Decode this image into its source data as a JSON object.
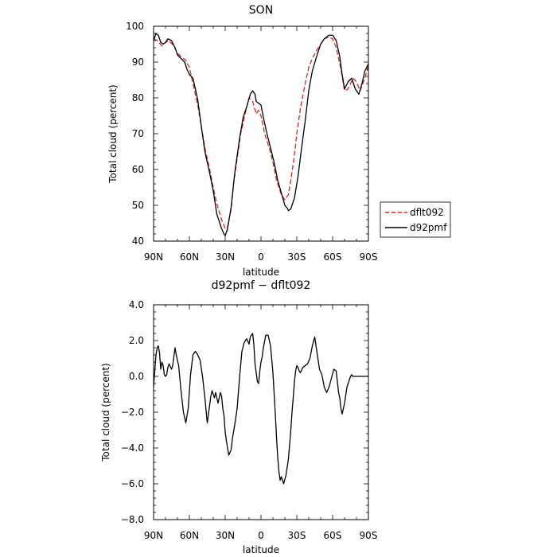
{
  "chart_data": [
    {
      "type": "line",
      "title": "SON",
      "xlabel": "latitude",
      "ylabel": "Total cloud (percent)",
      "x_range": [
        90,
        -90
      ],
      "ylim": [
        40,
        100
      ],
      "x_ticks": [
        {
          "value": 90,
          "label": "90N"
        },
        {
          "value": 60,
          "label": "60N"
        },
        {
          "value": 30,
          "label": "30N"
        },
        {
          "value": 0,
          "label": "0"
        },
        {
          "value": -30,
          "label": "30S"
        },
        {
          "value": -60,
          "label": "60S"
        },
        {
          "value": -90,
          "label": "90S"
        }
      ],
      "y_ticks": [
        {
          "value": 40,
          "label": "40"
        },
        {
          "value": 50,
          "label": "50"
        },
        {
          "value": 60,
          "label": "60"
        },
        {
          "value": 70,
          "label": "70"
        },
        {
          "value": 80,
          "label": "80"
        },
        {
          "value": 90,
          "label": "90"
        },
        {
          "value": 100,
          "label": "100"
        }
      ],
      "legend_position": "right",
      "series": [
        {
          "name": "dflt092",
          "color": "#e02020",
          "dash": "dashed",
          "x": [
            90,
            87,
            83,
            80,
            77,
            73,
            70,
            67,
            63,
            60,
            57,
            53,
            50,
            47,
            43,
            40,
            37,
            33,
            30,
            28,
            25,
            23,
            20,
            17,
            13,
            10,
            7,
            4,
            2,
            0,
            -2,
            -3,
            -7,
            -10,
            -13,
            -17,
            -20,
            -23,
            -25,
            -28,
            -30,
            -33,
            -37,
            -40,
            -43,
            -47,
            -50,
            -53,
            -57,
            -60,
            -63,
            -67,
            -70,
            -73,
            -77,
            -80,
            -83,
            -87,
            -90
          ],
          "y": [
            96.5,
            96,
            94.5,
            95.5,
            96,
            94.5,
            92.5,
            91.5,
            90.5,
            88.5,
            84,
            78,
            72,
            66,
            60,
            55,
            50.5,
            46,
            43.5,
            44,
            49,
            56,
            63,
            70,
            76,
            80,
            79,
            75.5,
            76.5,
            75,
            72,
            70,
            66,
            62,
            57,
            53,
            51.5,
            53,
            57,
            64,
            70,
            77,
            84,
            88.5,
            91,
            93.5,
            95,
            96.5,
            97,
            96.5,
            94,
            88,
            82,
            82.5,
            85.5,
            84.5,
            82,
            85.5,
            89
          ]
        },
        {
          "name": "d92pmf",
          "color": "#000000",
          "dash": "solid",
          "x": [
            90,
            88,
            86,
            84,
            82,
            80,
            78,
            75,
            72,
            70,
            67,
            64,
            62,
            60,
            57,
            53,
            50,
            47,
            43,
            40,
            37,
            33,
            31,
            30,
            28,
            25,
            22,
            18,
            15,
            12,
            9,
            7,
            5,
            4,
            2,
            0,
            -2,
            -5,
            -8,
            -11,
            -14,
            -17,
            -20,
            -22,
            -23,
            -25,
            -28,
            -31,
            -34,
            -37,
            -40,
            -43,
            -47,
            -50,
            -53,
            -57,
            -60,
            -63,
            -66,
            -68,
            -70,
            -73,
            -76,
            -79,
            -82,
            -85,
            -87,
            -90
          ],
          "y": [
            96,
            98,
            97.5,
            95.5,
            95,
            95.5,
            96.5,
            96,
            94,
            92,
            91,
            90,
            88,
            86.5,
            85.5,
            79.5,
            72,
            65,
            59,
            54,
            47.5,
            43.5,
            42,
            41.5,
            43.5,
            49.5,
            59,
            68.5,
            74.5,
            77.5,
            81,
            82,
            81,
            79,
            78.5,
            78,
            74.5,
            70,
            66,
            62,
            57,
            53.5,
            50,
            49.2,
            48.5,
            49,
            52,
            58,
            66,
            73.5,
            82,
            87.5,
            92,
            95,
            96.5,
            97.5,
            97.5,
            96,
            91.5,
            86.5,
            82.5,
            84.5,
            85.5,
            82.5,
            81,
            84.5,
            87.5,
            89.5
          ]
        }
      ]
    },
    {
      "type": "line",
      "title": "d92pmf − dflt092",
      "xlabel": "latitude",
      "ylabel": "Total cloud (percent)",
      "x_range": [
        90,
        -90
      ],
      "ylim": [
        -8,
        4
      ],
      "x_ticks": [
        {
          "value": 90,
          "label": "90N"
        },
        {
          "value": 60,
          "label": "60N"
        },
        {
          "value": 30,
          "label": "30N"
        },
        {
          "value": 0,
          "label": "0"
        },
        {
          "value": -30,
          "label": "30S"
        },
        {
          "value": -60,
          "label": "60S"
        },
        {
          "value": -90,
          "label": "90S"
        }
      ],
      "y_ticks": [
        {
          "value": -8,
          "label": "−8.0"
        },
        {
          "value": -6,
          "label": "−6.0"
        },
        {
          "value": -4,
          "label": "−4.0"
        },
        {
          "value": -2,
          "label": "−2.0"
        },
        {
          "value": 0,
          "label": "0.0"
        },
        {
          "value": 2,
          "label": "2.0"
        },
        {
          "value": 4,
          "label": "4.0"
        }
      ],
      "series": [
        {
          "color": "#000000",
          "dash": "solid",
          "x": [
            90,
            89,
            88,
            87,
            86,
            85,
            84,
            83,
            82,
            81,
            80,
            79,
            78,
            77,
            75,
            74,
            72,
            71,
            69,
            67,
            65,
            63,
            61,
            59,
            57,
            55,
            53,
            51,
            49,
            47,
            45,
            43,
            42,
            41,
            39,
            38,
            36,
            34,
            33,
            32,
            31,
            30,
            29,
            27,
            25,
            24,
            23,
            22,
            20,
            18,
            16,
            14,
            12,
            10,
            9,
            7,
            6,
            5,
            4,
            3,
            2,
            1,
            0,
            -1,
            -2,
            -4,
            -6,
            -8,
            -10,
            -12,
            -13,
            -14,
            -15,
            -16,
            -17,
            -19,
            -21,
            -23,
            -25,
            -26,
            -27,
            -28,
            -29,
            -30,
            -31,
            -32,
            -33,
            -35,
            -37,
            -39,
            -41,
            -43,
            -45,
            -47,
            -49,
            -51,
            -53,
            -55,
            -57,
            -59,
            -61,
            -63,
            -64,
            -65,
            -66,
            -67,
            -68,
            -70,
            -72,
            -74,
            -75,
            -76,
            -77,
            -78,
            -79,
            -80,
            -81,
            -82,
            -83,
            -84,
            -85,
            -86,
            -87,
            -88,
            -89,
            -90
          ],
          "y": [
            -0.6,
            0.3,
            1.2,
            1.6,
            1.7,
            1.3,
            0.4,
            0.8,
            0.6,
            0.1,
            0,
            0.1,
            0.5,
            0.7,
            0.4,
            0.6,
            1.6,
            1.2,
            0.6,
            -0.8,
            -2,
            -2.6,
            -1.8,
            0.1,
            1.2,
            1.4,
            1.2,
            0.9,
            0,
            -1.2,
            -2.6,
            -1.6,
            -1.1,
            -0.8,
            -1.2,
            -0.9,
            -1.5,
            -0.9,
            -1.1,
            -1.8,
            -2.2,
            -3.1,
            -3.6,
            -4.4,
            -4.1,
            -3.5,
            -3.1,
            -2.7,
            -1.8,
            -0.1,
            1.4,
            1.9,
            2.1,
            1.8,
            2.2,
            2.4,
            1.8,
            0.7,
            0.2,
            -0.3,
            -0.4,
            0.3,
            0.8,
            1.1,
            1.6,
            2.3,
            2.3,
            1.7,
            0.2,
            -2.1,
            -3.4,
            -4.5,
            -5.3,
            -5.8,
            -5.6,
            -6,
            -5.5,
            -4.6,
            -3,
            -2,
            -1.2,
            -0.3,
            0.3,
            0.6,
            0.5,
            0.3,
            0.2,
            0.5,
            0.6,
            0.7,
            1,
            1.7,
            2.2,
            1.3,
            0.4,
            0.1,
            -0.6,
            -0.9,
            -0.6,
            -0.1,
            0.4,
            0.3,
            -0.3,
            -0.9,
            -1.2,
            -1.8,
            -2.1,
            -1.5,
            -0.6,
            -0.2,
            0,
            0.1,
            0,
            0,
            0,
            0,
            0,
            0,
            0,
            0,
            0,
            0,
            0,
            0,
            0,
            0
          ]
        }
      ]
    }
  ]
}
